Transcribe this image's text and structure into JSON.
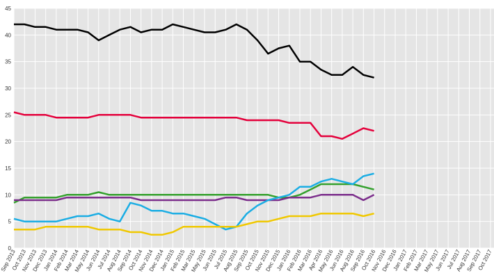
{
  "chart_data": {
    "type": "line",
    "categories": [
      "Sep 2013",
      "Oct 2013",
      "Nov 2013",
      "Dec 2013",
      "Jan 2014",
      "Feb 2014",
      "Mar 2014",
      "May 2014",
      "Jun 2014",
      "Jul 2014",
      "Aug 2014",
      "Sep 2014",
      "Oct 2014",
      "Nov 2014",
      "Dec 2014",
      "Jan 2015",
      "Feb 2015",
      "Mar 2015",
      "May 2015",
      "Jun 2015",
      "Jul 2015",
      "Aug 2015",
      "Sep 2015",
      "Oct 2015",
      "Nov 2015",
      "Dec 2015",
      "Jan 2016",
      "Feb 2016",
      "Mar 2016",
      "Apr 2016",
      "May 2016",
      "Jun 2016",
      "Aug 2016",
      "Sep 2016",
      "Oct 2016",
      "Nov 2016",
      "Dec 2016",
      "Jan 2017",
      "Feb 2017",
      "Mar 2017",
      "May 2017",
      "Jun 2017",
      "Jul 2017",
      "Aug 2017",
      "Sep 2017",
      "Oct 2017"
    ],
    "series": [
      {
        "color": "#000000",
        "values": [
          42,
          42,
          41.5,
          41.5,
          41,
          41,
          41,
          40.5,
          39,
          40,
          41,
          41.5,
          40.5,
          41,
          41,
          42,
          41.5,
          41,
          40.5,
          40.5,
          41,
          42,
          41,
          39,
          36.5,
          37.5,
          38,
          35,
          35,
          33.5,
          32.5,
          32.5,
          34,
          32.5,
          32,
          null,
          null,
          null,
          null,
          null,
          null,
          null,
          null,
          null,
          null,
          null
        ]
      },
      {
        "color": "#e4003b",
        "values": [
          25.5,
          25,
          25,
          25,
          24.5,
          24.5,
          24.5,
          24.5,
          25,
          25,
          25,
          25,
          24.5,
          24.5,
          24.5,
          24.5,
          24.5,
          24.5,
          24.5,
          24.5,
          24.5,
          24.5,
          24,
          24,
          24,
          24,
          23.5,
          23.5,
          23.5,
          21,
          21,
          20.5,
          21.5,
          22.5,
          22,
          null,
          null,
          null,
          null,
          null,
          null,
          null,
          null,
          null,
          null,
          null
        ]
      },
      {
        "color": "#33a02c",
        "values": [
          8.5,
          9.5,
          9.5,
          9.5,
          9.5,
          10,
          10,
          10,
          10.5,
          10,
          10,
          10,
          10,
          10,
          10,
          10,
          10,
          10,
          10,
          10,
          10,
          10,
          10,
          10,
          10,
          9.5,
          9.5,
          10,
          11,
          12,
          12,
          12,
          12,
          11.5,
          11,
          null,
          null,
          null,
          null,
          null,
          null,
          null,
          null,
          null,
          null,
          null
        ]
      },
      {
        "color": "#7b2d8b",
        "values": [
          9,
          9,
          9,
          9,
          9,
          9.5,
          9.5,
          9.5,
          9.5,
          9.5,
          9.5,
          9.5,
          9,
          9,
          9,
          9,
          9,
          9,
          9,
          9,
          9.5,
          9.5,
          9,
          9,
          9,
          9,
          9.5,
          9.5,
          9.5,
          10,
          10,
          10,
          10,
          9,
          10,
          null,
          null,
          null,
          null,
          null,
          null,
          null,
          null,
          null,
          null,
          null
        ]
      },
      {
        "color": "#1aade4",
        "values": [
          5.5,
          5,
          5,
          5,
          5,
          5.5,
          6,
          6,
          6.5,
          5.5,
          5,
          8.5,
          8,
          7,
          7,
          6.5,
          6.5,
          6,
          5.5,
          4.5,
          3.5,
          4,
          6.5,
          8,
          9,
          9.5,
          10,
          11.5,
          11.5,
          12.5,
          13,
          12.5,
          12,
          13.5,
          14,
          null,
          null,
          null,
          null,
          null,
          null,
          null,
          null,
          null,
          null,
          null
        ]
      },
      {
        "color": "#f0c800",
        "values": [
          3.5,
          3.5,
          3.5,
          4,
          4,
          4,
          4,
          4,
          3.5,
          3.5,
          3.5,
          3,
          3,
          2.5,
          2.5,
          3,
          4,
          4,
          4,
          4,
          4,
          4,
          4.5,
          5,
          5,
          5.5,
          6,
          6,
          6,
          6.5,
          6.5,
          6.5,
          6.5,
          6,
          6.5,
          null,
          null,
          null,
          null,
          null,
          null,
          null,
          null,
          null,
          null,
          null
        ]
      }
    ],
    "ylim": [
      0,
      45
    ],
    "yticks": [
      0,
      5,
      10,
      15,
      20,
      25,
      30,
      35,
      40,
      45
    ],
    "grid": true
  }
}
